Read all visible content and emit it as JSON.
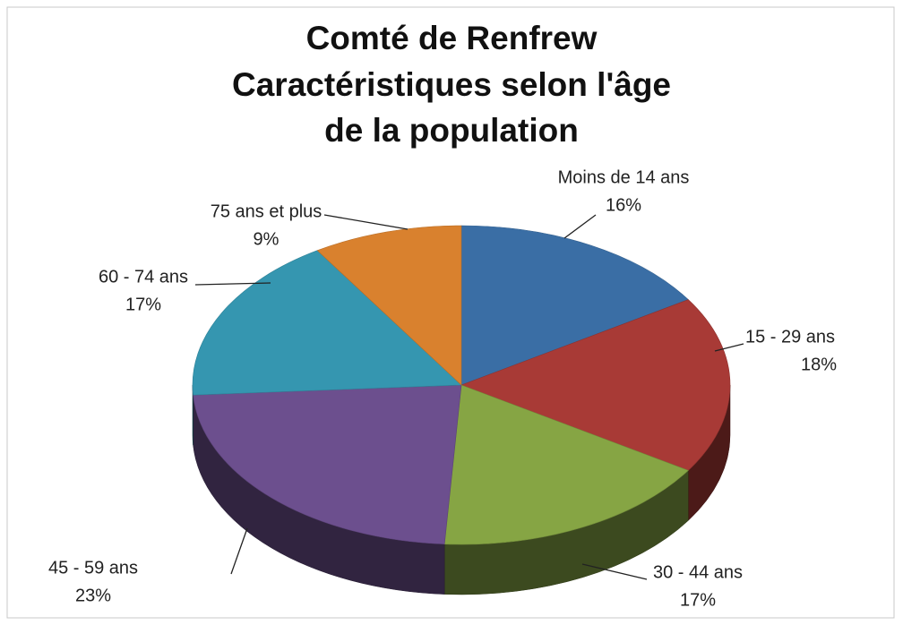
{
  "chart_data": {
    "type": "pie3d",
    "title": [
      "Comté de Renfrew",
      "Caractéristiques selon l'âge",
      "de la population"
    ],
    "categories": [
      "Moins de 14 ans",
      "15 - 29 ans",
      "30 - 44 ans",
      "45 - 59 ans",
      "60 - 74 ans",
      "75 ans et plus"
    ],
    "values": [
      16,
      18,
      17,
      23,
      17,
      9
    ],
    "value_labels": [
      "16%",
      "18%",
      "17%",
      "23%",
      "17%",
      "9%"
    ],
    "colors": [
      "#3a6ea5",
      "#a83a36",
      "#86a544",
      "#6c4f8e",
      "#3596b0",
      "#d9812e"
    ]
  }
}
